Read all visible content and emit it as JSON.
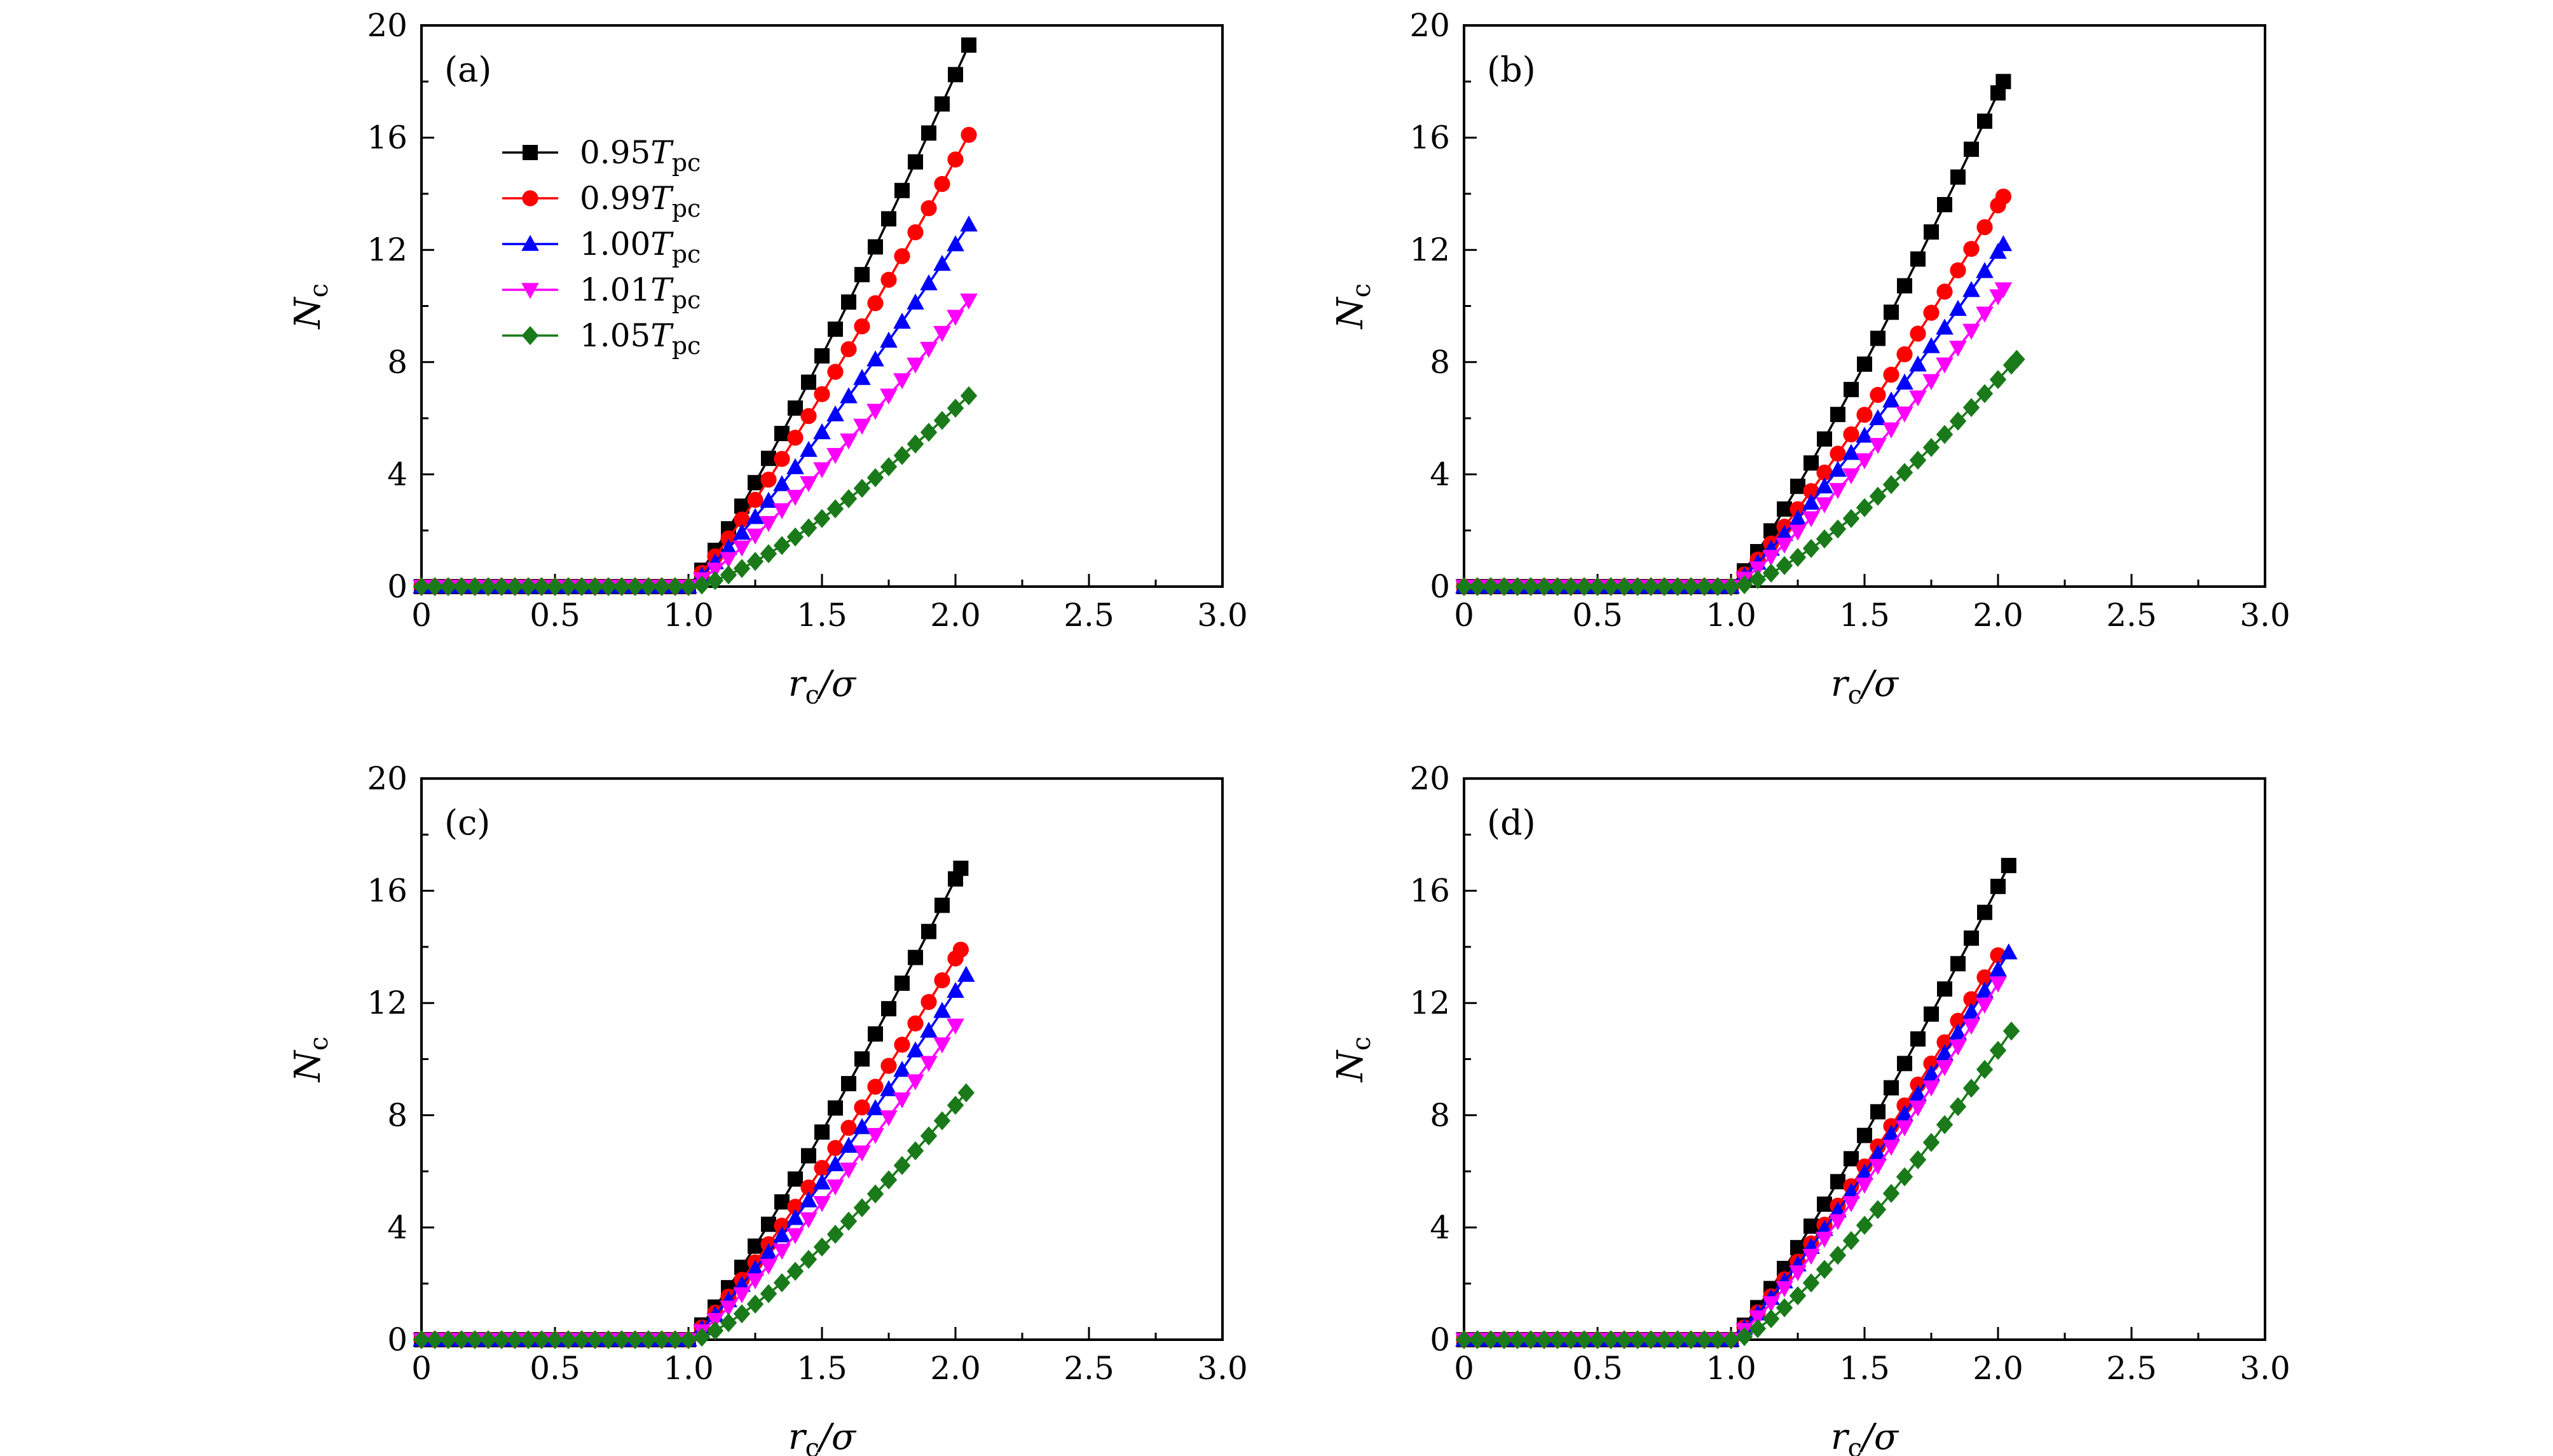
{
  "legend": [
    {
      "coef": "0.95",
      "T": "T",
      "sub": "pc",
      "color": "#000000",
      "marker": "square"
    },
    {
      "coef": "0.99",
      "T": "T",
      "sub": "pc",
      "color": "#ff0000",
      "marker": "circle"
    },
    {
      "coef": "1.00",
      "T": "T",
      "sub": "pc",
      "color": "#0000ff",
      "marker": "triangle-up"
    },
    {
      "coef": "1.01",
      "T": "T",
      "sub": "pc",
      "color": "#ff00ff",
      "marker": "triangle-down"
    },
    {
      "coef": "1.05",
      "T": "T",
      "sub": "pc",
      "color": "#1a7a1a",
      "marker": "diamond"
    }
  ],
  "axes": {
    "xlabel": {
      "main": "r",
      "sub": "c",
      "rest": "/σ"
    },
    "ylabel": {
      "main": "N",
      "sub": "c"
    },
    "xticks": [
      "0",
      "0.5",
      "1.0",
      "1.5",
      "2.0",
      "2.5",
      "3.0"
    ],
    "yticks": [
      "0",
      "4",
      "8",
      "12",
      "16",
      "20"
    ]
  },
  "chart_data": [
    {
      "type": "line",
      "panel": "(a)",
      "xlim": [
        0,
        3
      ],
      "ylim": [
        0,
        20
      ],
      "grid": false,
      "legend": "top-left",
      "series": [
        {
          "name": "0.95Tpc",
          "start": 1.0,
          "end": 2.05,
          "final": 19.3,
          "exp": 1.15
        },
        {
          "name": "0.99Tpc",
          "start": 1.0,
          "end": 2.05,
          "final": 16.1,
          "exp": 1.15
        },
        {
          "name": "1.00Tpc",
          "start": 1.0,
          "end": 2.05,
          "final": 12.9,
          "exp": 1.15
        },
        {
          "name": "1.01Tpc",
          "start": 1.0,
          "end": 2.05,
          "final": 10.2,
          "exp": 1.2
        },
        {
          "name": "1.05Tpc",
          "start": 1.02,
          "end": 2.05,
          "final": 6.8,
          "exp": 1.35
        }
      ]
    },
    {
      "type": "line",
      "panel": "(b)",
      "xlim": [
        0,
        3
      ],
      "ylim": [
        0,
        20
      ],
      "grid": false,
      "series": [
        {
          "name": "0.95Tpc",
          "start": 1.0,
          "end": 2.02,
          "final": 18.0,
          "exp": 1.15
        },
        {
          "name": "0.99Tpc",
          "start": 1.0,
          "end": 2.02,
          "final": 13.9,
          "exp": 1.15
        },
        {
          "name": "1.00Tpc",
          "start": 1.0,
          "end": 2.02,
          "final": 12.2,
          "exp": 1.15
        },
        {
          "name": "1.01Tpc",
          "start": 1.0,
          "end": 2.02,
          "final": 10.6,
          "exp": 1.2
        },
        {
          "name": "1.05Tpc",
          "start": 1.02,
          "end": 2.07,
          "final": 8.1,
          "exp": 1.35
        }
      ]
    },
    {
      "type": "line",
      "panel": "(c)",
      "xlim": [
        0,
        3
      ],
      "ylim": [
        0,
        20
      ],
      "grid": false,
      "series": [
        {
          "name": "0.95Tpc",
          "start": 1.0,
          "end": 2.02,
          "final": 16.8,
          "exp": 1.15
        },
        {
          "name": "0.99Tpc",
          "start": 1.0,
          "end": 2.02,
          "final": 13.9,
          "exp": 1.15
        },
        {
          "name": "1.00Tpc",
          "start": 1.0,
          "end": 2.04,
          "final": 13.0,
          "exp": 1.15
        },
        {
          "name": "1.01Tpc",
          "start": 1.0,
          "end": 2.0,
          "final": 11.2,
          "exp": 1.2
        },
        {
          "name": "1.05Tpc",
          "start": 1.02,
          "end": 2.04,
          "final": 8.8,
          "exp": 1.3
        }
      ]
    },
    {
      "type": "line",
      "panel": "(d)",
      "xlim": [
        0,
        3
      ],
      "ylim": [
        0,
        20
      ],
      "grid": false,
      "series": [
        {
          "name": "0.95Tpc",
          "start": 1.0,
          "end": 2.04,
          "final": 16.9,
          "exp": 1.15
        },
        {
          "name": "0.99Tpc",
          "start": 1.0,
          "end": 2.0,
          "final": 13.7,
          "exp": 1.15
        },
        {
          "name": "1.00Tpc",
          "start": 1.0,
          "end": 2.04,
          "final": 13.8,
          "exp": 1.15
        },
        {
          "name": "1.01Tpc",
          "start": 1.0,
          "end": 2.0,
          "final": 12.7,
          "exp": 1.2
        },
        {
          "name": "1.05Tpc",
          "start": 1.02,
          "end": 2.05,
          "final": 11.0,
          "exp": 1.3
        }
      ]
    }
  ]
}
